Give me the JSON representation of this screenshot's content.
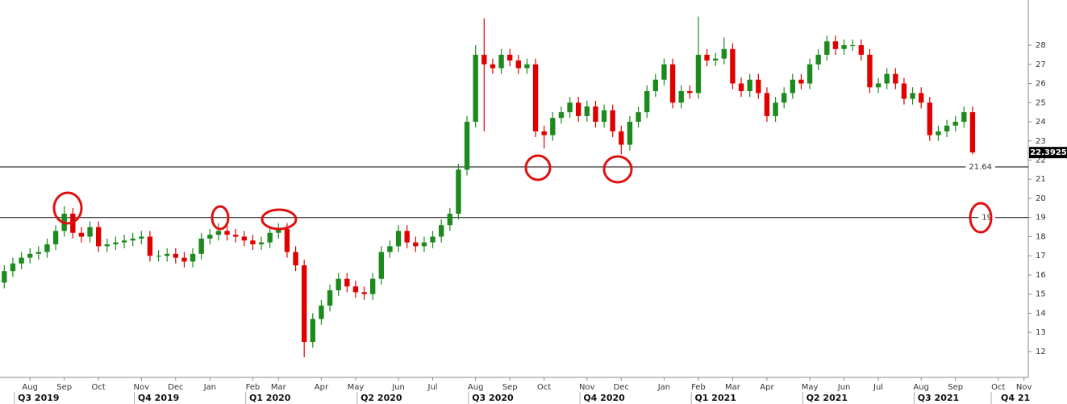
{
  "chart_data": {
    "type": "candlestick",
    "categories": [
      null,
      null,
      null,
      "Aug",
      null,
      null,
      null,
      "Sep",
      null,
      null,
      null,
      "Oct",
      null,
      null,
      null,
      null,
      "Nov",
      null,
      null,
      null,
      "Dec",
      null,
      null,
      null,
      "Jan",
      null,
      null,
      null,
      null,
      "Feb",
      null,
      null,
      "Mar",
      null,
      null,
      null,
      null,
      "Apr",
      null,
      null,
      null,
      "May",
      null,
      null,
      null,
      null,
      "Jun",
      null,
      null,
      null,
      "Jul",
      null,
      null,
      null,
      null,
      "Aug",
      null,
      null,
      null,
      "Sep",
      null,
      null,
      null,
      "Oct",
      null,
      null,
      null,
      null,
      "Nov",
      null,
      null,
      null,
      "Dec",
      null,
      null,
      null,
      null,
      "Jan",
      null,
      null,
      null,
      "Feb",
      null,
      null,
      null,
      "Mar",
      null,
      null,
      null,
      "Apr",
      null,
      null,
      null,
      null,
      "May",
      null,
      null,
      null,
      "Jun",
      null,
      null,
      null,
      "Jul",
      null,
      null,
      null,
      null,
      "Aug",
      null,
      null,
      null,
      "Sep",
      null,
      null,
      null,
      null,
      "Oct",
      null,
      null,
      "Nov"
    ],
    "quarter_labels": [
      null,
      null,
      null,
      null,
      "Q3 2019",
      null,
      null,
      null,
      null,
      null,
      null,
      null,
      null,
      null,
      null,
      null,
      null,
      null,
      "Q4 2019",
      null,
      null,
      null,
      null,
      null,
      null,
      null,
      null,
      null,
      null,
      null,
      null,
      "Q1 2020",
      null,
      null,
      null,
      null,
      null,
      null,
      null,
      null,
      null,
      null,
      null,
      null,
      "Q2 2020",
      null,
      null,
      null,
      null,
      null,
      null,
      null,
      null,
      null,
      null,
      null,
      null,
      "Q3 2020",
      null,
      null,
      null,
      null,
      null,
      null,
      null,
      null,
      null,
      null,
      null,
      null,
      "Q4 2020",
      null,
      null,
      null,
      null,
      null,
      null,
      null,
      null,
      null,
      null,
      null,
      null,
      "Q1 2021",
      null,
      null,
      null,
      null,
      null,
      null,
      null,
      null,
      null,
      null,
      null,
      null,
      "Q2 2021",
      null,
      null,
      null,
      null,
      null,
      null,
      null,
      null,
      null,
      null,
      null,
      null,
      "Q3 2021",
      null,
      null,
      null,
      null,
      null,
      null,
      null,
      null,
      "Q4 21",
      null
    ],
    "open": [
      15.6,
      16.2,
      16.6,
      16.9,
      17.1,
      17.2,
      17.6,
      18.3,
      19.2,
      18.2,
      18.0,
      18.5,
      17.5,
      17.6,
      17.7,
      17.8,
      17.9,
      18.0,
      17.0,
      17.0,
      17.1,
      16.9,
      16.7,
      17.1,
      17.9,
      18.1,
      18.3,
      18.1,
      18.0,
      17.8,
      17.6,
      17.7,
      18.2,
      18.4,
      17.2,
      16.5,
      12.5,
      13.7,
      14.4,
      15.2,
      15.8,
      15.4,
      15.1,
      15.0,
      15.8,
      17.2,
      17.5,
      18.3,
      17.7,
      17.5,
      17.7,
      18.0,
      18.6,
      19.2,
      21.5,
      24.0,
      27.5,
      27.0,
      26.8,
      27.5,
      27.2,
      26.8,
      27.0,
      23.5,
      23.3,
      24.2,
      24.5,
      25.0,
      24.3,
      24.8,
      24.0,
      24.6,
      23.5,
      22.8,
      24.0,
      24.5,
      25.6,
      26.2,
      27.0,
      25.0,
      25.6,
      25.5,
      27.5,
      27.2,
      27.3,
      27.8,
      26.0,
      25.6,
      26.2,
      25.5,
      24.3,
      25.0,
      25.5,
      26.2,
      26.0,
      27.0,
      27.5,
      28.2,
      27.8,
      28.0,
      28.0,
      27.5,
      25.8,
      26.0,
      26.5,
      26.0,
      25.2,
      25.5,
      25.0,
      23.3,
      23.5,
      23.8,
      24.0,
      24.5,
      null,
      null,
      null,
      null,
      null,
      null
    ],
    "high": [
      16.5,
      16.9,
      17.2,
      17.4,
      17.5,
      17.9,
      18.6,
      19.6,
      19.5,
      18.5,
      18.8,
      18.8,
      17.9,
      18.0,
      18.1,
      18.2,
      18.3,
      18.3,
      17.3,
      17.4,
      17.4,
      17.2,
      17.4,
      18.2,
      18.4,
      18.7,
      18.6,
      18.4,
      18.3,
      18.1,
      18.0,
      18.5,
      18.7,
      18.7,
      17.5,
      16.8,
      14.0,
      14.7,
      15.5,
      16.1,
      16.1,
      15.7,
      15.4,
      16.1,
      17.5,
      17.8,
      18.6,
      18.6,
      18.0,
      18.0,
      18.3,
      18.9,
      19.5,
      21.8,
      24.3,
      28.0,
      29.4,
      27.3,
      27.8,
      27.8,
      27.5,
      27.3,
      27.3,
      23.8,
      24.5,
      24.8,
      25.3,
      25.3,
      25.1,
      25.1,
      24.9,
      24.9,
      23.8,
      24.3,
      24.8,
      25.9,
      26.5,
      27.3,
      27.3,
      25.9,
      25.9,
      29.5,
      27.8,
      27.6,
      28.4,
      28.1,
      26.3,
      26.5,
      26.5,
      25.8,
      25.3,
      25.8,
      26.5,
      26.5,
      27.3,
      27.8,
      28.5,
      28.5,
      28.3,
      28.3,
      28.3,
      27.8,
      26.3,
      26.8,
      26.8,
      26.3,
      25.8,
      25.8,
      25.3,
      23.8,
      24.1,
      24.3,
      24.8,
      24.8,
      null,
      null,
      null,
      null,
      null,
      null
    ],
    "low": [
      15.3,
      15.9,
      16.3,
      16.6,
      16.8,
      16.9,
      17.3,
      18.0,
      17.9,
      17.7,
      17.7,
      17.2,
      17.2,
      17.3,
      17.4,
      17.5,
      17.6,
      16.7,
      16.7,
      16.7,
      16.6,
      16.4,
      16.4,
      16.8,
      17.6,
      17.8,
      17.8,
      17.7,
      17.5,
      17.3,
      17.3,
      17.4,
      17.9,
      16.9,
      16.2,
      11.7,
      12.2,
      13.4,
      14.1,
      14.9,
      15.1,
      14.8,
      14.7,
      14.7,
      15.5,
      16.9,
      17.2,
      17.4,
      17.2,
      17.2,
      17.4,
      17.7,
      18.3,
      18.9,
      21.2,
      23.7,
      23.5,
      26.5,
      26.5,
      26.9,
      26.5,
      26.5,
      23.2,
      22.6,
      23.0,
      23.9,
      24.2,
      24.0,
      24.0,
      23.7,
      23.7,
      23.2,
      22.3,
      22.5,
      23.7,
      24.2,
      25.3,
      25.9,
      24.7,
      24.7,
      25.2,
      25.2,
      26.9,
      26.9,
      27.0,
      25.7,
      25.3,
      25.3,
      25.2,
      24.0,
      24.0,
      24.7,
      25.2,
      25.7,
      25.7,
      26.7,
      27.2,
      27.5,
      27.5,
      27.7,
      27.2,
      25.5,
      25.5,
      25.7,
      25.7,
      24.9,
      24.9,
      24.7,
      23.0,
      23.0,
      23.2,
      23.5,
      23.7,
      22.3,
      null,
      null,
      null,
      null,
      null,
      null
    ],
    "close": [
      16.2,
      16.6,
      16.9,
      17.1,
      17.2,
      17.6,
      18.3,
      19.2,
      18.2,
      18.0,
      18.5,
      17.5,
      17.6,
      17.7,
      17.8,
      17.9,
      18.0,
      17.0,
      17.0,
      17.1,
      16.9,
      16.7,
      17.1,
      17.9,
      18.1,
      18.3,
      18.1,
      18.0,
      17.8,
      17.6,
      17.7,
      18.2,
      18.4,
      17.2,
      16.5,
      12.5,
      13.7,
      14.4,
      15.2,
      15.8,
      15.4,
      15.1,
      15.0,
      15.8,
      17.2,
      17.5,
      18.3,
      17.7,
      17.5,
      17.7,
      18.0,
      18.6,
      19.2,
      21.5,
      24.0,
      27.5,
      27.0,
      26.8,
      27.5,
      27.2,
      26.8,
      27.0,
      23.5,
      23.3,
      24.2,
      24.5,
      25.0,
      24.3,
      24.8,
      24.0,
      24.6,
      23.5,
      22.8,
      24.0,
      24.5,
      25.6,
      26.2,
      27.0,
      25.0,
      25.6,
      25.5,
      27.5,
      27.2,
      27.3,
      27.8,
      26.0,
      25.6,
      26.2,
      25.5,
      24.3,
      25.0,
      25.5,
      26.2,
      26.0,
      27.0,
      27.5,
      28.2,
      27.8,
      28.0,
      28.0,
      27.5,
      25.8,
      26.0,
      26.5,
      26.0,
      25.2,
      25.5,
      25.0,
      23.3,
      23.5,
      23.8,
      24.0,
      24.5,
      22.4,
      null,
      null,
      null,
      null,
      null,
      null
    ],
    "up_color": "#1c8a1c",
    "down_color": "#e00000",
    "ylim": [
      10.65,
      30.36
    ],
    "yticks": [
      12,
      13,
      14,
      15,
      16,
      17,
      18,
      19,
      20,
      21,
      22,
      23,
      24,
      25,
      26,
      27,
      28
    ],
    "hlines": [
      21.64,
      19
    ],
    "last_price": 22.3925
  }
}
